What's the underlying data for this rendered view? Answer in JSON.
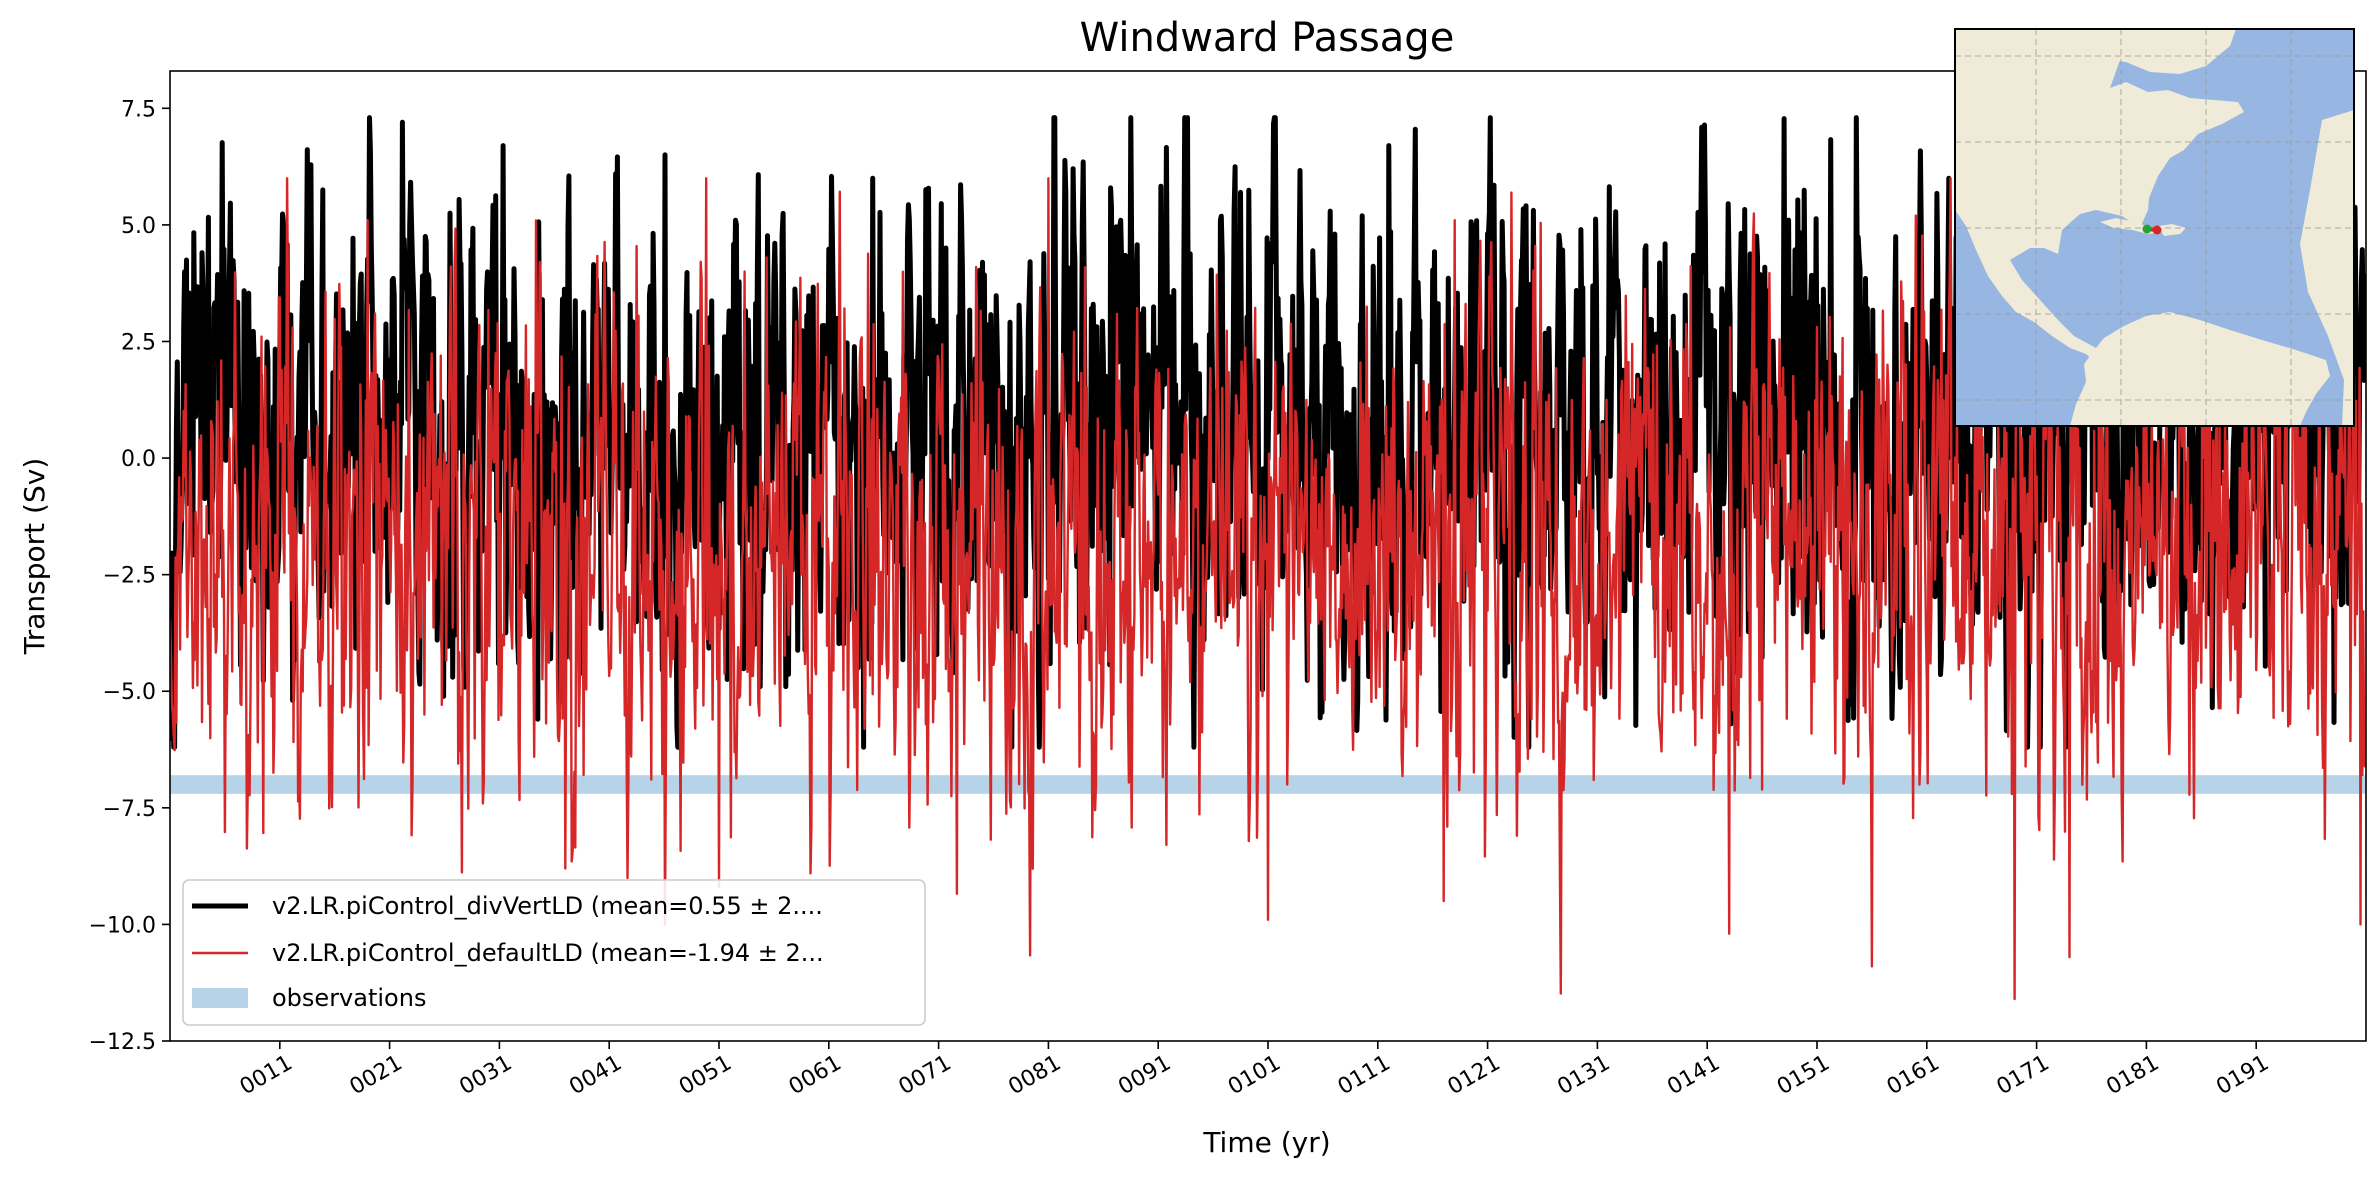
{
  "chart_data": {
    "type": "line",
    "title": "Windward Passage",
    "xlabel": "Time (yr)",
    "ylabel": "Transport (Sv)",
    "xlim": [
      1,
      201
    ],
    "ylim": [
      -12.5,
      8.3
    ],
    "yticks": [
      7.5,
      5.0,
      2.5,
      0.0,
      -2.5,
      -5.0,
      -7.5,
      -10.0,
      -12.5
    ],
    "ytick_labels": [
      "7.5",
      "5.0",
      "2.5",
      "0.0",
      "−2.5",
      "−5.0",
      "−7.5",
      "−10.0",
      "−12.5"
    ],
    "xticks": [
      11,
      21,
      31,
      41,
      51,
      61,
      71,
      81,
      91,
      101,
      111,
      121,
      131,
      141,
      151,
      161,
      171,
      181,
      191
    ],
    "xtick_labels": [
      "0011",
      "0021",
      "0031",
      "0041",
      "0051",
      "0061",
      "0071",
      "0081",
      "0091",
      "0101",
      "0111",
      "0121",
      "0131",
      "0141",
      "0151",
      "0161",
      "0171",
      "0181",
      "0191"
    ],
    "series": [
      {
        "name": "v2.LR.piControl_divVertLD (mean=0.55 ± 2....",
        "color": "#000000",
        "kind": "monthly-timeseries",
        "mean": 0.55,
        "std": 2.6,
        "min": -6.2,
        "max": 7.3,
        "peaks": [
          {
            "x": 22.2,
            "y": 7.2
          },
          {
            "x": 88.5,
            "y": 7.3
          },
          {
            "x": 31.3,
            "y": 6.7
          },
          {
            "x": 112.0,
            "y": 6.7
          },
          {
            "x": 46.1,
            "y": 6.5
          },
          {
            "x": 65.0,
            "y": 6.0
          }
        ],
        "troughs": [
          {
            "x": 64.2,
            "y": -6.2
          },
          {
            "x": 34.5,
            "y": -5.6
          },
          {
            "x": 143.2,
            "y": -5.7
          }
        ]
      },
      {
        "name": "v2.LR.piControl_defaultLD (mean=-1.94 ± 2...",
        "color": "#d62728",
        "kind": "monthly-timeseries",
        "mean": -1.94,
        "std": 2.7,
        "min": -11.6,
        "max": 6.0,
        "peaks": [
          {
            "x": 49.8,
            "y": 6.0
          },
          {
            "x": 81.0,
            "y": 6.0
          },
          {
            "x": 19.0,
            "y": 5.1
          },
          {
            "x": 160.0,
            "y": 5.2
          },
          {
            "x": 118.0,
            "y": 5.1
          }
        ],
        "troughs": [
          {
            "x": 169.0,
            "y": -11.6
          },
          {
            "x": 156.0,
            "y": -10.9
          },
          {
            "x": 174.0,
            "y": -10.7
          },
          {
            "x": 143.0,
            "y": -10.2
          },
          {
            "x": 101.0,
            "y": -9.9
          },
          {
            "x": 200.5,
            "y": -10.0
          },
          {
            "x": 51.0,
            "y": -9.2
          },
          {
            "x": 117.0,
            "y": -9.5
          },
          {
            "x": 37.0,
            "y": -8.8
          }
        ]
      }
    ],
    "observations": {
      "label": "observations",
      "color": "#b6d3e8",
      "range": [
        -7.2,
        -6.8
      ]
    },
    "legend": {
      "location": "lower-left",
      "entries": [
        "v2.LR.piControl_divVertLD (mean=0.55 ± 2....",
        "v2.LR.piControl_defaultLD (mean=-1.94 ± 2...",
        "observations"
      ]
    },
    "inset_map": {
      "location": "top-right",
      "land_color": "#efebd8",
      "ocean_color": "#97b6e1",
      "marker_colors": [
        "#d62728",
        "#2ca02c"
      ],
      "marker_location": "Windward Passage (between Cuba and Hispaniola)"
    }
  }
}
